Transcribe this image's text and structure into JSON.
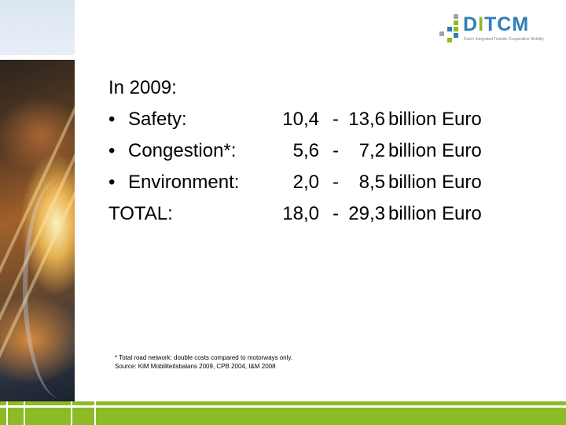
{
  "logo": {
    "prefix": "D",
    "i_letter": "I",
    "suffix": "TCM",
    "tagline": "Dutch Integrated Testsite Cooperative Mobility"
  },
  "heading": "In 2009:",
  "rows": [
    {
      "bullet": "•",
      "label": "Safety:",
      "from": "10,4",
      "dash": "-",
      "to": "13,6",
      "unit": "billion Euro"
    },
    {
      "bullet": "•",
      "label": "Congestion*:",
      "from": "5,6",
      "dash": "-",
      "to": "7,2",
      "unit": "billion Euro"
    },
    {
      "bullet": "•",
      "label": "Environment:",
      "from": "2,0",
      "dash": "-",
      "to": "8,5",
      "unit": "billion Euro"
    }
  ],
  "total": {
    "label": "TOTAL:",
    "from": "18,0",
    "dash": "-",
    "to": "29,3",
    "unit": "billion Euro"
  },
  "footnote": {
    "line1": "* Total road network: double costs compared to motorways only.",
    "line2": "Source: KiM Mobiliteitsbalans 2009, CPB 2004, I&M 2008"
  },
  "colors": {
    "green": "#8dbb25",
    "blue": "#2e7fb8"
  }
}
